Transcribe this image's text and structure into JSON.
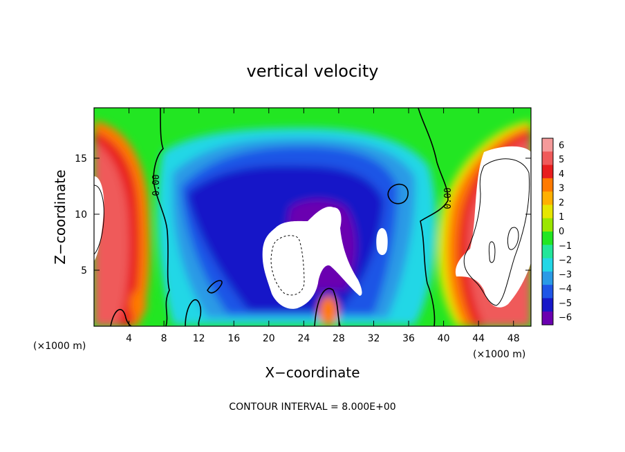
{
  "chart_data": {
    "type": "heatmap",
    "title": "vertical velocity",
    "xlabel": "X−coordinate",
    "ylabel": "Z−coordinate",
    "x_unit_label": "(×1000 m)",
    "x_ticks": [
      "4",
      "8",
      "12",
      "16",
      "20",
      "24",
      "28",
      "32",
      "36",
      "40",
      "44",
      "48"
    ],
    "y_ticks": [
      "5",
      "10",
      "15"
    ],
    "xlim": [
      0,
      50
    ],
    "ylim": [
      0,
      19.5
    ],
    "contour_interval_label": "CONTOUR INTERVAL = 8.000E+00",
    "contour_line_labels": [
      "0.00",
      "0.00"
    ],
    "colorbar": {
      "labels": [
        "6",
        "5",
        "4",
        "3",
        "2",
        "1",
        "0",
        "−1",
        "−2",
        "−3",
        "−4",
        "−5",
        "−6"
      ],
      "colors": [
        "#f59a9a",
        "#ef5a5a",
        "#e81e1e",
        "#ff7a00",
        "#ffb000",
        "#e6e600",
        "#9ae600",
        "#22e622",
        "#22e69a",
        "#22d7e6",
        "#2a9ae6",
        "#1f55e6",
        "#1818c8",
        "#6a00b0"
      ],
      "range": [
        -6,
        6
      ]
    },
    "features": [
      {
        "kind": "updraft",
        "x_range": [
          0,
          7
        ],
        "z_range": [
          0,
          19.5
        ],
        "level": "high"
      },
      {
        "kind": "updraft",
        "x_range": [
          39,
          50
        ],
        "z_range": [
          0,
          19.5
        ],
        "level": "high"
      },
      {
        "kind": "downdraft",
        "x_range": [
          9,
          35
        ],
        "z_range": [
          2,
          17
        ],
        "level": "low"
      },
      {
        "kind": "saturated_out_of_range_negative",
        "x_range": [
          19,
          30
        ],
        "z_range": [
          2,
          11
        ]
      }
    ]
  }
}
